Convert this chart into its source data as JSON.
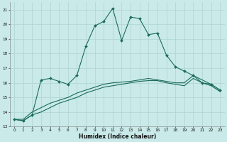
{
  "title": "",
  "xlabel": "Humidex (Indice chaleur)",
  "ylabel": "",
  "background_color": "#c9eae8",
  "grid_color": "#afd4d0",
  "line_color": "#1a6b5a",
  "xlim": [
    -0.5,
    23.5
  ],
  "ylim": [
    13,
    21.5
  ],
  "yticks": [
    13,
    14,
    15,
    16,
    17,
    18,
    19,
    20,
    21
  ],
  "xticks": [
    0,
    1,
    2,
    3,
    4,
    5,
    6,
    7,
    8,
    9,
    10,
    11,
    12,
    13,
    14,
    15,
    16,
    17,
    18,
    19,
    20,
    21,
    22,
    23
  ],
  "series1_x": [
    0,
    1,
    2,
    3,
    4,
    5,
    6,
    7,
    8,
    9,
    10,
    11,
    12,
    13,
    14,
    15,
    16,
    17,
    18,
    19,
    20,
    21,
    22,
    23
  ],
  "series1_y": [
    13.5,
    13.4,
    13.8,
    16.2,
    16.3,
    16.1,
    15.9,
    16.5,
    18.5,
    19.9,
    20.2,
    21.1,
    18.9,
    20.5,
    20.4,
    19.3,
    19.4,
    17.9,
    17.1,
    16.8,
    16.5,
    16.0,
    15.9,
    15.5
  ],
  "series2_x": [
    0,
    1,
    2,
    3,
    4,
    5,
    6,
    7,
    8,
    9,
    10,
    11,
    12,
    13,
    14,
    15,
    16,
    17,
    18,
    19,
    20,
    21,
    22,
    23
  ],
  "series2_y": [
    13.5,
    13.5,
    14.0,
    14.3,
    14.6,
    14.8,
    15.0,
    15.3,
    15.5,
    15.7,
    15.9,
    16.0,
    16.05,
    16.1,
    16.2,
    16.3,
    16.2,
    16.1,
    16.0,
    16.0,
    16.5,
    16.2,
    15.9,
    15.5
  ],
  "series3_x": [
    0,
    1,
    2,
    3,
    4,
    5,
    6,
    7,
    8,
    9,
    10,
    11,
    12,
    13,
    14,
    15,
    16,
    17,
    18,
    19,
    20,
    21,
    22,
    23
  ],
  "series3_y": [
    13.5,
    13.4,
    13.8,
    14.0,
    14.3,
    14.6,
    14.8,
    15.0,
    15.3,
    15.5,
    15.7,
    15.8,
    15.9,
    16.0,
    16.1,
    16.15,
    16.15,
    16.0,
    15.9,
    15.8,
    16.3,
    16.0,
    15.8,
    15.4
  ],
  "marker_size": 2.0,
  "line_width": 0.8,
  "xlabel_fontsize": 5.5,
  "tick_fontsize": 4.2
}
